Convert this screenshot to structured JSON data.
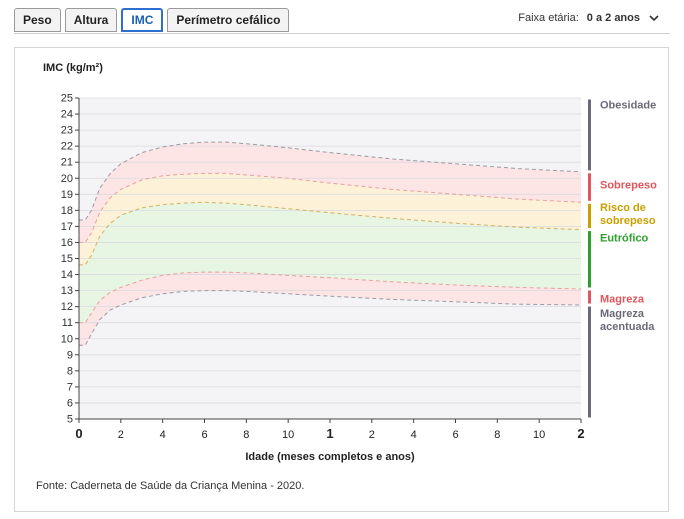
{
  "tabs": [
    {
      "label": "Peso",
      "active": false
    },
    {
      "label": "Altura",
      "active": false
    },
    {
      "label": "IMC",
      "active": true
    },
    {
      "label": "Perímetro cefálico",
      "active": false
    }
  ],
  "age_filter": {
    "label": "Faixa etária:",
    "value": "0 a 2 anos"
  },
  "source": "Fonte: Caderneta de Saúde da Criança Menina - 2020.",
  "colors": {
    "obesidade": "#6b6b78",
    "sobrepeso": "#e0565c",
    "risco": "#c9a000",
    "eutrofico": "#2e9e2e",
    "magreza": "#e0565c",
    "magreza_acentuada": "#6b6b78",
    "band_red": "#fde5e5",
    "band_yellow": "#fdf2d8",
    "band_green": "#e6f6e2"
  },
  "chart_data": {
    "type": "line",
    "ylabel": "IMC (kg/m²)",
    "xlabel": "Idade (meses completos e anos)",
    "ylim": [
      5,
      25
    ],
    "xlim": [
      0,
      24
    ],
    "yticks": [
      "5",
      "6",
      "7",
      "8",
      "9",
      "10",
      "11",
      "12",
      "13",
      "14",
      "15",
      "16",
      "17",
      "18",
      "19",
      "20",
      "21",
      "22",
      "23",
      "24",
      "25"
    ],
    "xticks": [
      {
        "x": 0,
        "label": "0",
        "bold": true
      },
      {
        "x": 2,
        "label": "2",
        "bold": false
      },
      {
        "x": 4,
        "label": "4",
        "bold": false
      },
      {
        "x": 6,
        "label": "6",
        "bold": false
      },
      {
        "x": 8,
        "label": "8",
        "bold": false
      },
      {
        "x": 10,
        "label": "10",
        "bold": false
      },
      {
        "x": 12,
        "label": "1",
        "bold": true
      },
      {
        "x": 14,
        "label": "2",
        "bold": false
      },
      {
        "x": 16,
        "label": "4",
        "bold": false
      },
      {
        "x": 18,
        "label": "6",
        "bold": false
      },
      {
        "x": 20,
        "label": "8",
        "bold": false
      },
      {
        "x": 22,
        "label": "10",
        "bold": false
      },
      {
        "x": 24,
        "label": "2",
        "bold": true
      }
    ],
    "grid": true,
    "series": [
      {
        "x": [
          0,
          0.3,
          0.6,
          1,
          1.5,
          2,
          3,
          4,
          5,
          6,
          7,
          8,
          10,
          12,
          15,
          18,
          21,
          24
        ],
        "y": [
          17.4,
          17.4,
          18.0,
          19.4,
          20.3,
          20.9,
          21.6,
          21.95,
          22.15,
          22.25,
          22.25,
          22.15,
          21.9,
          21.6,
          21.2,
          20.9,
          20.6,
          20.4
        ]
      },
      {
        "x": [
          0,
          0.3,
          0.6,
          1,
          1.5,
          2,
          3,
          4,
          5,
          6,
          7,
          8,
          10,
          12,
          15,
          18,
          21,
          24
        ],
        "y": [
          16.0,
          16.0,
          16.6,
          17.9,
          18.8,
          19.3,
          19.9,
          20.15,
          20.25,
          20.3,
          20.3,
          20.2,
          20.0,
          19.7,
          19.3,
          19.0,
          18.7,
          18.5
        ]
      },
      {
        "x": [
          0,
          0.3,
          0.6,
          1,
          1.5,
          2,
          3,
          4,
          5,
          6,
          7,
          8,
          10,
          12,
          15,
          18,
          21,
          24
        ],
        "y": [
          14.6,
          14.6,
          15.2,
          16.4,
          17.2,
          17.7,
          18.15,
          18.35,
          18.45,
          18.5,
          18.45,
          18.35,
          18.1,
          17.85,
          17.5,
          17.2,
          16.95,
          16.8
        ]
      },
      {
        "x": [
          0,
          0.3,
          0.6,
          1,
          1.5,
          2,
          3,
          4,
          5,
          6,
          7,
          8,
          10,
          12,
          15,
          18,
          21,
          24
        ],
        "y": [
          11.0,
          11.0,
          11.6,
          12.4,
          12.9,
          13.2,
          13.65,
          13.95,
          14.1,
          14.15,
          14.15,
          14.1,
          13.95,
          13.8,
          13.55,
          13.35,
          13.2,
          13.1
        ]
      },
      {
        "x": [
          0,
          0.3,
          0.6,
          1,
          1.5,
          2,
          3,
          4,
          5,
          6,
          7,
          8,
          10,
          12,
          15,
          18,
          21,
          24
        ],
        "y": [
          9.6,
          9.6,
          10.3,
          11.2,
          11.8,
          12.1,
          12.55,
          12.8,
          12.95,
          13.0,
          13.0,
          12.95,
          12.8,
          12.65,
          12.45,
          12.3,
          12.15,
          12.1
        ]
      }
    ],
    "zones": [
      {
        "label": "Obesidade",
        "color": "#6b6b78",
        "from": 20.4,
        "to": 25
      },
      {
        "label": "Sobrepeso",
        "color": "#e0565c",
        "from": 18.5,
        "to": 20.4
      },
      {
        "label": "Risco de sobrepeso",
        "color": "#c9a000",
        "from": 16.8,
        "to": 18.5
      },
      {
        "label": "Eutrófico",
        "color": "#2e9e2e",
        "from": 13.1,
        "to": 16.8
      },
      {
        "label": "Magreza",
        "color": "#e0565c",
        "from": 12.1,
        "to": 13.1
      },
      {
        "label": "Magreza acentuada",
        "color": "#6b6b78",
        "from": 5,
        "to": 12.1
      }
    ]
  }
}
